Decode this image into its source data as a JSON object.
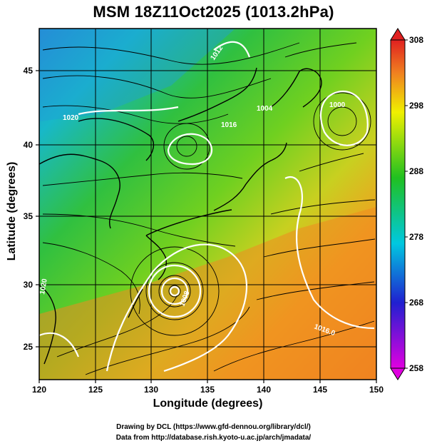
{
  "title": "MSM 18Z11Oct2025 (1013.2hPa)",
  "xlabel": "Longitude (degrees)",
  "ylabel": "Latitude  (degrees)",
  "credit_line1": "Drawing by DCL (https://www.gfd-dennou.org/library/dcl/)",
  "credit_line2": "Data from http://database.rish.kyoto-u.ac.jp/arch/jmadata/",
  "map": {
    "lon_range": [
      120,
      150
    ],
    "lat_range": [
      22.5,
      47.5
    ],
    "xticks": [
      "120",
      "125",
      "130",
      "135",
      "140",
      "145",
      "150"
    ],
    "yticks": [
      "25",
      "30",
      "35",
      "40",
      "45"
    ],
    "isobar_labels": [
      "1012",
      "1016",
      "1020",
      "1000",
      "1004",
      "1008",
      "1016.0",
      "1020"
    ],
    "colors": {
      "isobar": "#ffffff",
      "streamline": "#000000",
      "coast": "#000000"
    }
  },
  "colorbar": {
    "ticks": [
      "308",
      "298",
      "288",
      "278",
      "268",
      "258"
    ],
    "min": 258,
    "max": 308,
    "unit_note": "",
    "stops": [
      "#e000e0",
      "#2020d0",
      "#00c8e0",
      "#20c020",
      "#f0f000",
      "#f08020",
      "#e02020"
    ]
  }
}
